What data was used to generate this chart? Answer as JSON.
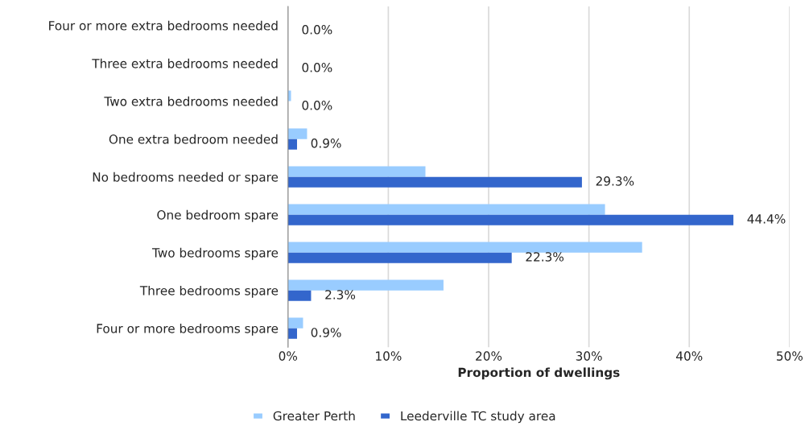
{
  "chart_data": {
    "type": "bar",
    "orientation": "horizontal",
    "xlabel": "Proportion of dwellings",
    "categories": [
      "Four or more extra bedrooms needed",
      "Three extra bedrooms needed",
      "Two extra bedrooms needed",
      "One extra bedroom needed",
      "No bedrooms needed or spare",
      "One bedroom spare",
      "Two bedrooms spare",
      "Three bedrooms spare",
      "Four or more bedrooms spare"
    ],
    "series": [
      {
        "name": "Greater Perth",
        "color": "#99ccff",
        "values": [
          0,
          0,
          0.3,
          1.9,
          13.7,
          31.6,
          35.3,
          15.5,
          1.5
        ]
      },
      {
        "name": "Leederville TC study area",
        "color": "#3366cc",
        "values": [
          0,
          0,
          0,
          0.9,
          29.3,
          44.4,
          22.3,
          2.3,
          0.9
        ],
        "value_labels": [
          "0.0%",
          "0.0%",
          "0.0%",
          "0.9%",
          "29.3%",
          "44.4%",
          "22.3%",
          "2.3%",
          "0.9%"
        ]
      }
    ],
    "xlim": [
      0,
      50
    ],
    "xticks": [
      {
        "value": 0,
        "label": "0%"
      },
      {
        "value": 10,
        "label": "10%"
      },
      {
        "value": 20,
        "label": "20%"
      },
      {
        "value": 30,
        "label": "30%"
      },
      {
        "value": 40,
        "label": "40%"
      },
      {
        "value": 50,
        "label": "50%"
      }
    ],
    "grid": "x",
    "legend": "bottom"
  }
}
